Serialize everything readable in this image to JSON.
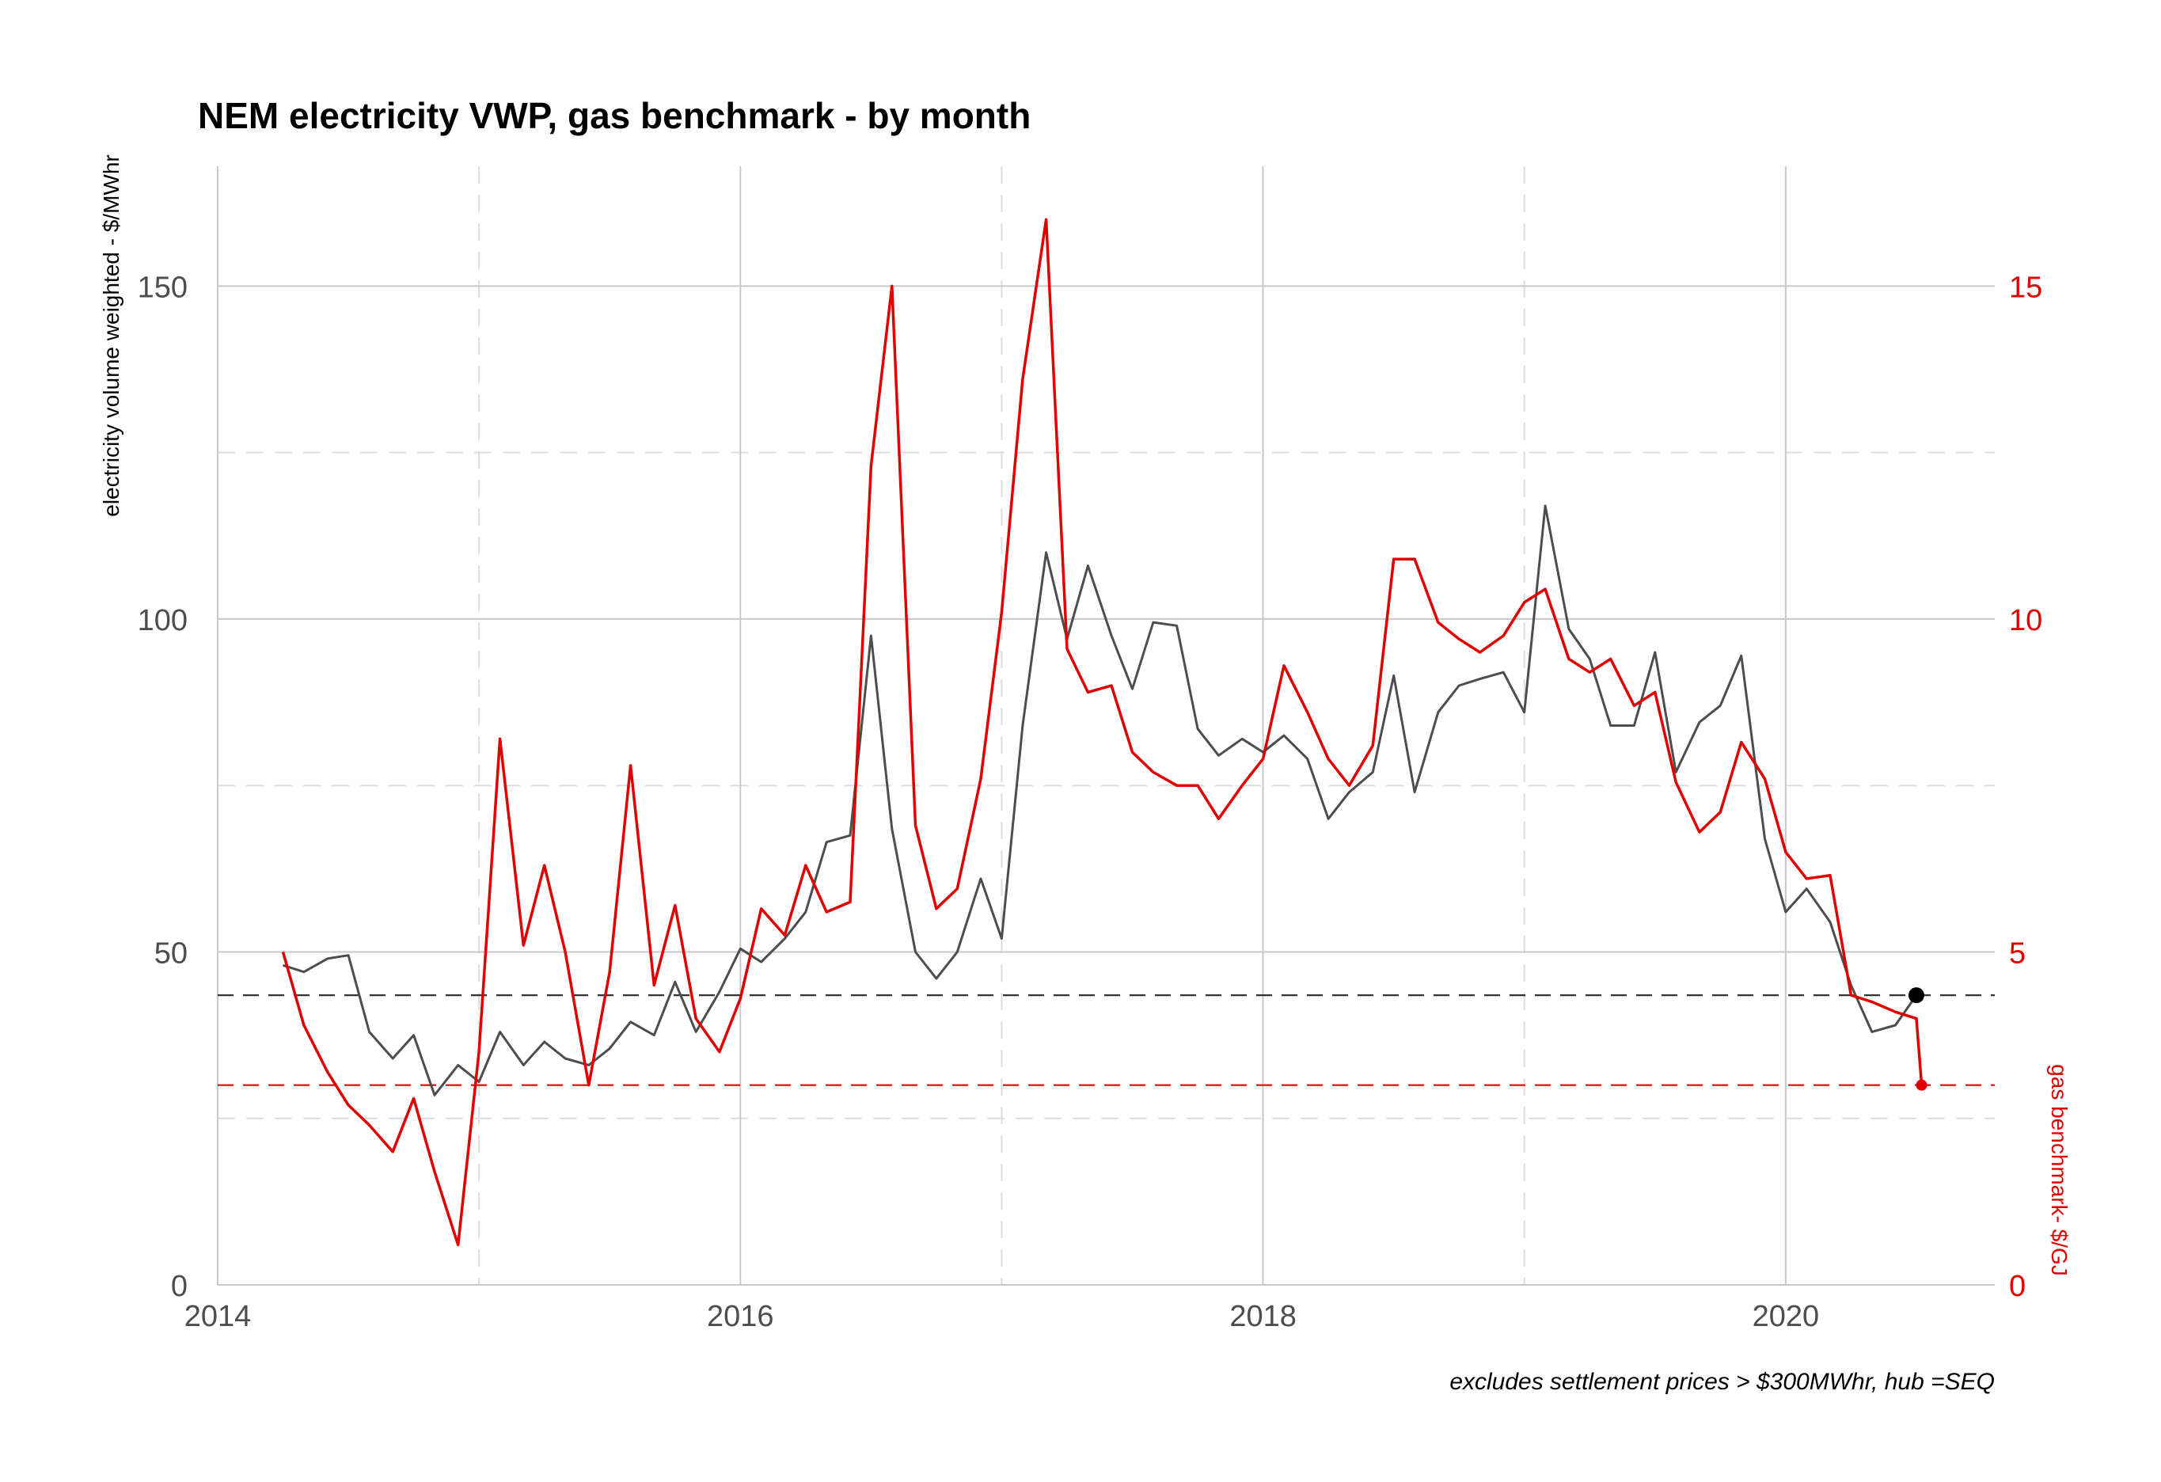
{
  "chart_data": {
    "type": "line",
    "title": "NEM electricity VWP, gas benchmark - by month",
    "caption": "excludes settlement prices > $300MWhr, hub =SEQ",
    "xlim": [
      2014.0,
      2020.8
    ],
    "x_ticks": [
      {
        "value": 2014,
        "label": "2014"
      },
      {
        "value": 2016,
        "label": "2016"
      },
      {
        "value": 2018,
        "label": "2018"
      },
      {
        "value": 2020,
        "label": "2020"
      }
    ],
    "y_left": {
      "label": "electricity volume weighted - $/MWhr",
      "lim": [
        0,
        168
      ],
      "ticks": [
        {
          "value": 0,
          "label": "0"
        },
        {
          "value": 50,
          "label": "50"
        },
        {
          "value": 100,
          "label": "100"
        },
        {
          "value": 150,
          "label": "150"
        }
      ],
      "color": "#4d4d4d"
    },
    "y_right": {
      "label": "gas benchmark- $/GJ",
      "lim": [
        0,
        16.8
      ],
      "ticks": [
        {
          "value": 0,
          "label": "0"
        },
        {
          "value": 5,
          "label": "5"
        },
        {
          "value": 10,
          "label": "10"
        },
        {
          "value": 15,
          "label": "15"
        }
      ],
      "color": "#e00000"
    },
    "series": [
      {
        "axis": "left",
        "color": "#4d4d4d",
        "x": [
          2014.25,
          2014.33,
          2014.42,
          2014.5,
          2014.58,
          2014.67,
          2014.75,
          2014.83,
          2014.92,
          2015.0,
          2015.08,
          2015.17,
          2015.25,
          2015.33,
          2015.42,
          2015.5,
          2015.58,
          2015.67,
          2015.75,
          2015.83,
          2015.92,
          2016.0,
          2016.08,
          2016.17,
          2016.25,
          2016.33,
          2016.42,
          2016.5,
          2016.58,
          2016.67,
          2016.75,
          2016.83,
          2016.92,
          2017.0,
          2017.08,
          2017.17,
          2017.25,
          2017.33,
          2017.42,
          2017.5,
          2017.58,
          2017.67,
          2017.75,
          2017.83,
          2017.92,
          2018.0,
          2018.08,
          2018.17,
          2018.25,
          2018.33,
          2018.42,
          2018.5,
          2018.58,
          2018.67,
          2018.75,
          2018.83,
          2018.92,
          2019.0,
          2019.08,
          2019.17,
          2019.25,
          2019.33,
          2019.42,
          2019.5,
          2019.58,
          2019.67,
          2019.75,
          2019.83,
          2019.92,
          2020.0,
          2020.08,
          2020.17,
          2020.25,
          2020.33,
          2020.42,
          2020.5
        ],
        "values": [
          48,
          47,
          49,
          49.5,
          38,
          34,
          37.5,
          28.5,
          33,
          30.5,
          38,
          33,
          36.5,
          34,
          33,
          35.5,
          39.5,
          37.5,
          45.5,
          38,
          44,
          50.5,
          48.5,
          52,
          56,
          66.5,
          67.5,
          97.5,
          68.5,
          50,
          46,
          50,
          61,
          52,
          84,
          110,
          97,
          108,
          97.5,
          89.5,
          99.5,
          99,
          83.5,
          79.5,
          82,
          80,
          82.5,
          79,
          70,
          74,
          77,
          91.5,
          74,
          86,
          90,
          91,
          92,
          86,
          117,
          98.5,
          94,
          84,
          84,
          95,
          77,
          84.5,
          87,
          94.5,
          67,
          56,
          59.5,
          54.5,
          45,
          38,
          39,
          43.5
        ]
      },
      {
        "axis": "right",
        "color": "#e00000",
        "x": [
          2014.25,
          2014.33,
          2014.42,
          2014.5,
          2014.58,
          2014.67,
          2014.75,
          2014.83,
          2014.92,
          2015.0,
          2015.08,
          2015.17,
          2015.25,
          2015.33,
          2015.42,
          2015.5,
          2015.58,
          2015.67,
          2015.75,
          2015.83,
          2015.92,
          2016.0,
          2016.08,
          2016.17,
          2016.25,
          2016.33,
          2016.42,
          2016.5,
          2016.58,
          2016.67,
          2016.75,
          2016.83,
          2016.92,
          2017.0,
          2017.08,
          2017.17,
          2017.25,
          2017.33,
          2017.42,
          2017.5,
          2017.58,
          2017.67,
          2017.75,
          2017.83,
          2017.92,
          2018.0,
          2018.08,
          2018.17,
          2018.25,
          2018.33,
          2018.42,
          2018.5,
          2018.58,
          2018.67,
          2018.75,
          2018.83,
          2018.92,
          2019.0,
          2019.08,
          2019.17,
          2019.25,
          2019.33,
          2019.42,
          2019.5,
          2019.58,
          2019.67,
          2019.75,
          2019.83,
          2019.92,
          2020.0,
          2020.08,
          2020.17,
          2020.25,
          2020.33,
          2020.42,
          2020.5,
          2020.52
        ],
        "values": [
          5.0,
          3.9,
          3.2,
          2.7,
          2.4,
          2.0,
          2.8,
          1.7,
          0.6,
          3.5,
          8.2,
          5.1,
          6.3,
          5.0,
          3.0,
          4.7,
          7.8,
          4.5,
          5.7,
          4.0,
          3.5,
          4.3,
          5.65,
          5.25,
          6.3,
          5.6,
          5.75,
          12.3,
          15.0,
          6.9,
          5.65,
          5.95,
          7.6,
          10.1,
          13.6,
          16.0,
          9.55,
          8.9,
          9.0,
          8.0,
          7.7,
          7.5,
          7.5,
          7.0,
          7.5,
          7.9,
          9.3,
          8.6,
          7.9,
          7.5,
          8.1,
          10.9,
          10.9,
          9.95,
          9.7,
          9.5,
          9.75,
          10.25,
          10.45,
          9.4,
          9.2,
          9.4,
          8.7,
          8.9,
          7.55,
          6.8,
          7.1,
          8.15,
          7.6,
          6.5,
          6.1,
          6.15,
          4.35,
          4.25,
          4.1,
          4.0,
          3.0
        ]
      }
    ],
    "reference_lines": [
      {
        "axis": "left",
        "value": 43.5,
        "color": "#333333",
        "style": "dashed"
      },
      {
        "axis": "right",
        "value": 3.0,
        "color": "#e00000",
        "style": "dashed"
      }
    ],
    "end_points": [
      {
        "axis": "left",
        "x": 2020.5,
        "value": 43.5,
        "color": "#000000"
      },
      {
        "axis": "right",
        "x": 2020.52,
        "value": 3.0,
        "color": "#e00000"
      }
    ],
    "grid": true
  }
}
